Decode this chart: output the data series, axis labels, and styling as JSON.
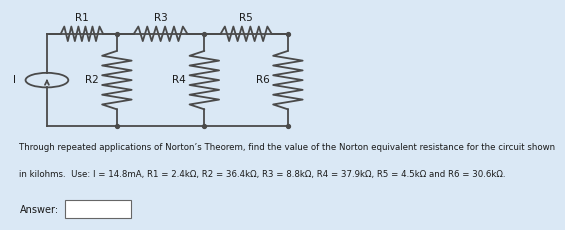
{
  "bg_color": "#dae8f5",
  "circuit_bg": "#dae8f5",
  "body_text_line1": "Through repeated applications of Norton’s Theorem, find the value of the Norton equivalent resistance for the circuit shown",
  "body_text_line2": "in kilohms.  Use: I = 14.8mA, R1 = 2.4kΩ, R2 = 36.4kΩ, R3 = 8.8kΩ, R4 = 37.9kΩ, R5 = 4.5kΩ and R6 = 30.6kΩ.",
  "answer_label": "Answer:",
  "font_size_circuit_label": 7.5,
  "font_size_body": 6.2,
  "font_size_answer": 7,
  "line_color": "#4a4a4a",
  "text_color": "#1a1a1a",
  "circuit_lw": 1.3,
  "cs_r": 0.055,
  "tly": 0.18,
  "bly": 0.88,
  "tlx": 0.095,
  "n1x": 0.275,
  "n2x": 0.5,
  "trx": 0.715
}
